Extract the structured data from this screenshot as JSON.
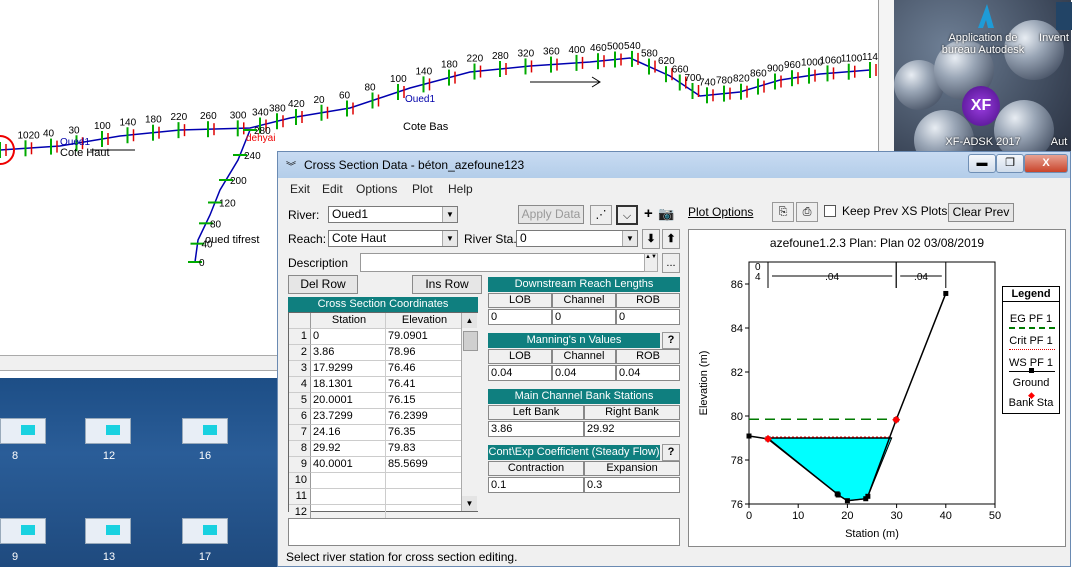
{
  "map": {
    "reaches": [
      "Cote Haut",
      "Cote Bas",
      "oued tifrest"
    ],
    "junction": "dehyai",
    "river_label": "Oued1",
    "stations_top": [
      "0",
      "1020",
      "40",
      "30",
      "100",
      "140",
      "180",
      "220",
      "260",
      "300",
      "340",
      "380",
      "420",
      "20",
      "60",
      "80",
      "100",
      "140",
      "180",
      "220",
      "280",
      "320",
      "360",
      "400",
      "460",
      "500",
      "540",
      "580",
      "620",
      "660",
      "700",
      "740",
      "780",
      "820",
      "860",
      "900",
      "960",
      "1000",
      "1060",
      "1100",
      "1140"
    ],
    "stations_branch": [
      "280",
      "240",
      "200",
      "120",
      "80",
      "40",
      "0"
    ]
  },
  "desktop": {
    "icons": [
      {
        "label": "8"
      },
      {
        "label": "12"
      },
      {
        "label": "16"
      },
      {
        "label": "9"
      },
      {
        "label": "13"
      },
      {
        "label": "17"
      }
    ],
    "apps": [
      {
        "label": "Application de bureau Autodesk"
      },
      {
        "label": "Invent"
      },
      {
        "label": "XF-ADSK 2017"
      },
      {
        "label": "Aut"
      }
    ],
    "xf_logo": "XF"
  },
  "dialog": {
    "title": "Cross Section Data - béton_azefoune123",
    "window_buttons": {
      "minimize": "▬",
      "restore": "❐",
      "close": "X"
    },
    "menu": [
      "Exit",
      "Edit",
      "Options",
      "Plot",
      "Help"
    ],
    "river_label": "River:",
    "river_value": "Oued1",
    "reach_label": "Reach:",
    "reach_value": "Cote Haut",
    "river_sta_label": "River Sta.:",
    "river_sta_value": "0",
    "description_label": "Description",
    "apply_data": "Apply Data",
    "del_row": "Del Row",
    "ins_row": "Ins Row",
    "cross_section_coords": {
      "title": "Cross Section Coordinates",
      "headers": [
        "Station",
        "Elevation"
      ],
      "rows": [
        {
          "n": "1",
          "station": "0",
          "elevation": "79.0901"
        },
        {
          "n": "2",
          "station": "3.86",
          "elevation": "78.96"
        },
        {
          "n": "3",
          "station": "17.9299",
          "elevation": "76.46"
        },
        {
          "n": "4",
          "station": "18.1301",
          "elevation": "76.41"
        },
        {
          "n": "5",
          "station": "20.0001",
          "elevation": "76.15"
        },
        {
          "n": "6",
          "station": "23.7299",
          "elevation": "76.2399"
        },
        {
          "n": "7",
          "station": "24.16",
          "elevation": "76.35"
        },
        {
          "n": "8",
          "station": "29.92",
          "elevation": "79.83"
        },
        {
          "n": "9",
          "station": "40.0001",
          "elevation": "85.5699"
        },
        {
          "n": "10",
          "station": "",
          "elevation": ""
        },
        {
          "n": "11",
          "station": "",
          "elevation": ""
        },
        {
          "n": "12",
          "station": "",
          "elevation": ""
        }
      ]
    },
    "reach_lengths": {
      "title": "Downstream Reach Lengths",
      "headers": [
        "LOB",
        "Channel",
        "ROB"
      ],
      "values": [
        "0",
        "0",
        "0"
      ]
    },
    "mannings": {
      "title": "Manning's n Values",
      "headers": [
        "LOB",
        "Channel",
        "ROB"
      ],
      "values": [
        "0.04",
        "0.04",
        "0.04"
      ],
      "help": "?"
    },
    "bank_stations": {
      "title": "Main Channel Bank Stations",
      "headers": [
        "Left Bank",
        "Right Bank"
      ],
      "values": [
        "3.86",
        "29.92"
      ]
    },
    "cont_exp": {
      "title": "Cont\\Exp Coefficient (Steady Flow)",
      "headers": [
        "Contraction",
        "Expansion"
      ],
      "values": [
        "0.1",
        "0.3"
      ],
      "help": "?"
    },
    "plot_options": "Plot Options",
    "keep_prev": "Keep Prev XS Plots",
    "clear_prev": "Clear Prev",
    "status": "Select river station for cross section editing."
  },
  "chart_data": {
    "type": "line",
    "title": "azefoune1.2.3        Plan: Plan 02     03/08/2019",
    "xlabel": "Station (m)",
    "ylabel": "Elevation (m)",
    "xlim": [
      0,
      50
    ],
    "ylim": [
      76,
      87
    ],
    "x_ticks": [
      "0",
      "10",
      "20",
      "30",
      "40",
      "50"
    ],
    "y_ticks": [
      "76",
      "78",
      "80",
      "82",
      "84",
      "86"
    ],
    "ground": {
      "x": [
        0,
        3.86,
        17.93,
        18.13,
        20.0,
        23.73,
        24.16,
        29.92,
        40.0
      ],
      "y": [
        79.09,
        78.96,
        76.46,
        76.41,
        76.15,
        76.24,
        76.35,
        79.83,
        85.57
      ]
    },
    "ws_elevation": 79.0,
    "eg_elevation": 79.85,
    "crit_elevation": 79.0,
    "bank_stations": [
      3.86,
      29.92
    ],
    "mannings_annotations": [
      ".04",
      ".04"
    ],
    "station_marker": "0\n4",
    "legend": {
      "title": "Legend",
      "items": [
        "EG PF 1",
        "Crit PF 1",
        "WS PF 1",
        "Ground",
        "Bank Sta"
      ]
    },
    "colors": {
      "ws_fill": "#00ffff",
      "eg": "#007a00",
      "crit": "#e00000",
      "ground": "#000000",
      "bank": "#ff0000"
    }
  }
}
